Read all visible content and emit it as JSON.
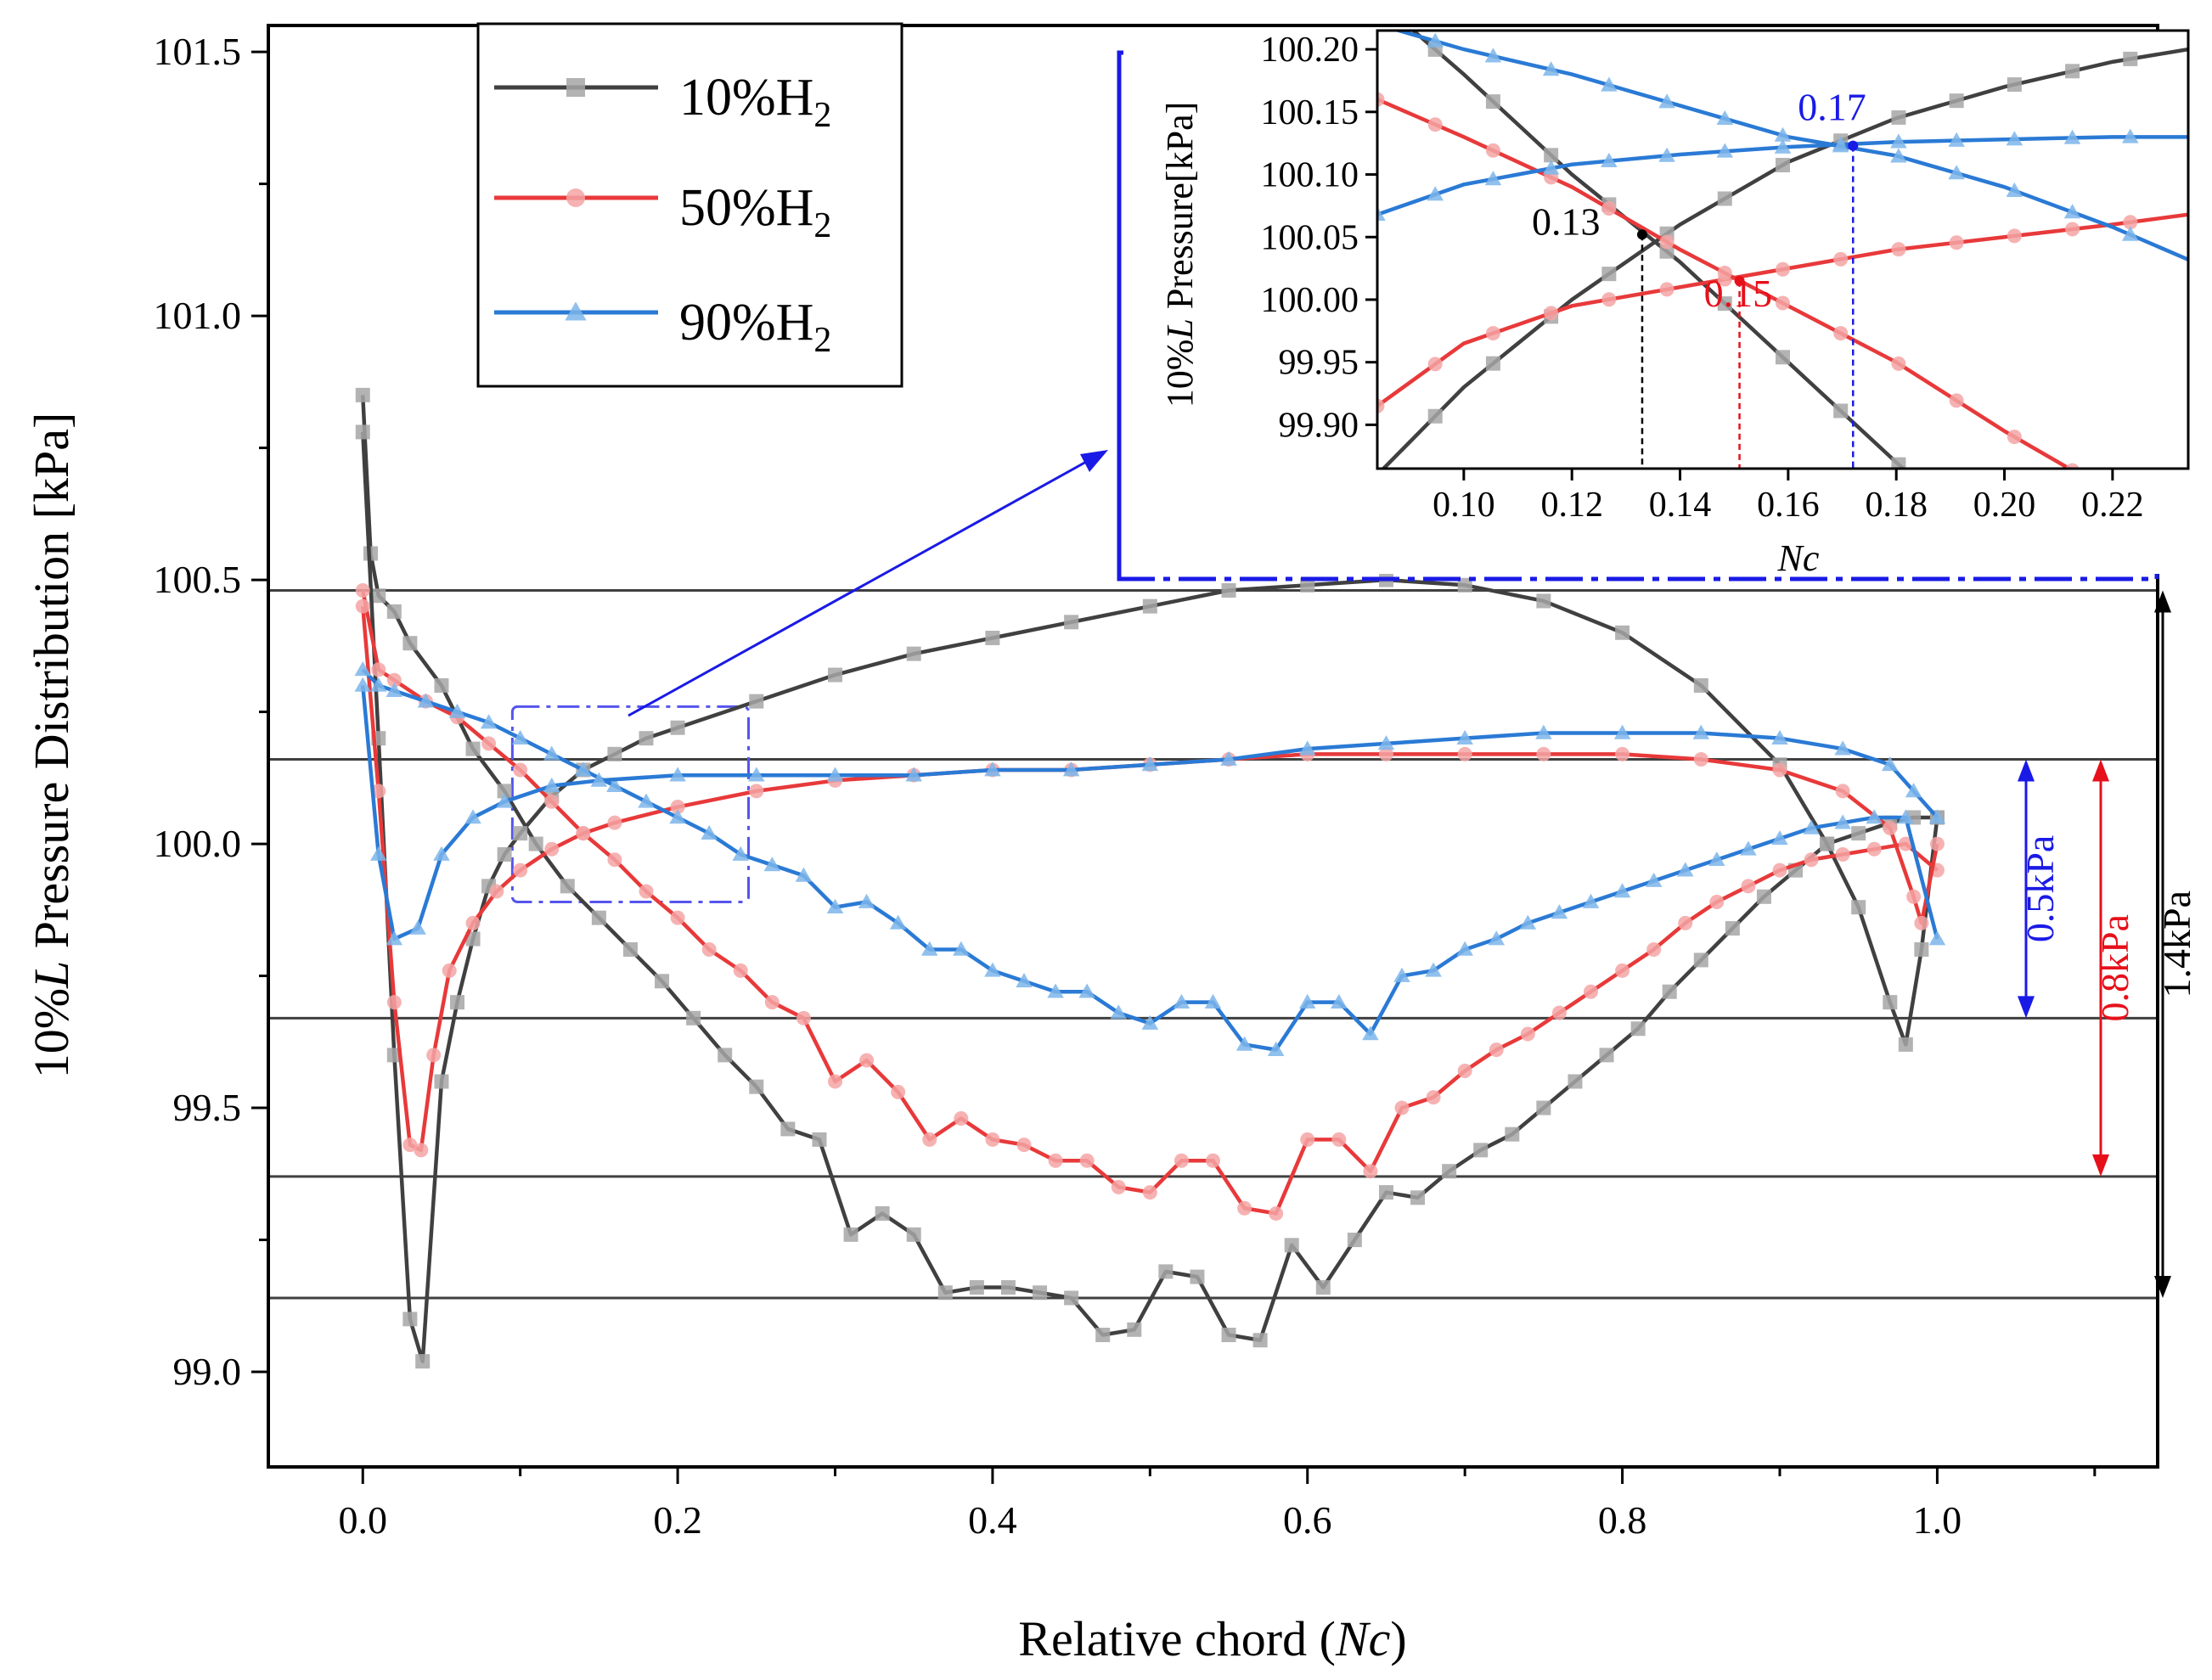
{
  "chart_data": {
    "type": "line",
    "xlabel_prefix": "Relative chord (",
    "xlabel_var": "Nc",
    "xlabel_suffix": ")",
    "ylabel_prefix": "10%",
    "ylabel_var": "L",
    "ylabel_suffix": " Pressure Distribution [kPa]",
    "xlim": [
      -0.06,
      1.14
    ],
    "ylim": [
      98.82,
      101.55
    ],
    "xticks": [
      "0.0",
      "0.2",
      "0.4",
      "0.6",
      "0.8",
      "1.0"
    ],
    "xtick_values": [
      0.0,
      0.2,
      0.4,
      0.6,
      0.8,
      1.0
    ],
    "yticks": [
      "99.0",
      "99.5",
      "100.0",
      "100.5",
      "101.0",
      "101.5"
    ],
    "ytick_values": [
      99.0,
      99.5,
      100.0,
      100.5,
      101.0,
      101.5
    ],
    "series": [
      {
        "name_prefix": "10%H",
        "name_sub": "2",
        "color": "#404040",
        "marker_color": "#a6a6a6",
        "marker": "square",
        "upper_x": [
          0.0,
          0.005,
          0.01,
          0.02,
          0.03,
          0.05,
          0.07,
          0.09,
          0.11,
          0.13,
          0.15,
          0.17,
          0.19,
          0.21,
          0.23,
          0.25,
          0.27,
          0.29,
          0.31,
          0.33,
          0.35,
          0.37,
          0.39,
          0.41,
          0.43,
          0.45,
          0.47,
          0.49,
          0.51,
          0.53,
          0.55,
          0.57,
          0.59,
          0.61,
          0.63,
          0.65,
          0.67,
          0.69,
          0.71,
          0.73,
          0.75,
          0.77,
          0.79,
          0.81,
          0.83,
          0.85,
          0.87,
          0.89,
          0.91,
          0.93,
          0.95,
          0.97,
          0.985,
          1.0
        ],
        "upper_y": [
          100.85,
          100.55,
          100.47,
          100.44,
          100.38,
          100.3,
          100.18,
          100.1,
          100.0,
          99.92,
          99.86,
          99.8,
          99.74,
          99.67,
          99.6,
          99.54,
          99.46,
          99.44,
          99.26,
          99.3,
          99.26,
          99.15,
          99.16,
          99.16,
          99.15,
          99.14,
          99.07,
          99.08,
          99.19,
          99.18,
          99.07,
          99.06,
          99.24,
          99.16,
          99.25,
          99.34,
          99.33,
          99.38,
          99.42,
          99.45,
          99.5,
          99.55,
          99.6,
          99.65,
          99.72,
          99.78,
          99.84,
          99.9,
          99.95,
          100.0,
          100.02,
          100.04,
          100.05,
          100.05
        ],
        "lower_x": [
          0.0,
          0.01,
          0.02,
          0.03,
          0.038,
          0.05,
          0.06,
          0.07,
          0.08,
          0.09,
          0.1,
          0.12,
          0.14,
          0.16,
          0.18,
          0.2,
          0.25,
          0.3,
          0.35,
          0.4,
          0.45,
          0.5,
          0.55,
          0.6,
          0.65,
          0.7,
          0.75,
          0.8,
          0.85,
          0.9,
          0.93,
          0.95,
          0.97,
          0.98,
          0.99,
          1.0
        ],
        "lower_y": [
          100.78,
          100.2,
          99.6,
          99.1,
          99.02,
          99.55,
          99.7,
          99.82,
          99.92,
          99.98,
          100.02,
          100.09,
          100.14,
          100.17,
          100.2,
          100.22,
          100.27,
          100.32,
          100.36,
          100.39,
          100.42,
          100.45,
          100.48,
          100.49,
          100.5,
          100.49,
          100.46,
          100.4,
          100.3,
          100.15,
          100.0,
          99.88,
          99.7,
          99.62,
          99.8,
          100.05
        ]
      },
      {
        "name_prefix": "50%H",
        "name_sub": "2",
        "color": "#e8393a",
        "marker_color": "#f4a4a4",
        "marker": "circle",
        "upper_x": [
          0.0,
          0.01,
          0.02,
          0.04,
          0.06,
          0.08,
          0.1,
          0.12,
          0.14,
          0.16,
          0.18,
          0.2,
          0.22,
          0.24,
          0.26,
          0.28,
          0.3,
          0.32,
          0.34,
          0.36,
          0.38,
          0.4,
          0.42,
          0.44,
          0.46,
          0.48,
          0.5,
          0.52,
          0.54,
          0.56,
          0.58,
          0.6,
          0.62,
          0.64,
          0.66,
          0.68,
          0.7,
          0.72,
          0.74,
          0.76,
          0.78,
          0.8,
          0.82,
          0.84,
          0.86,
          0.88,
          0.9,
          0.92,
          0.94,
          0.96,
          0.98,
          1.0
        ],
        "upper_y": [
          100.48,
          100.33,
          100.31,
          100.27,
          100.24,
          100.19,
          100.14,
          100.08,
          100.02,
          99.97,
          99.91,
          99.86,
          99.8,
          99.76,
          99.7,
          99.67,
          99.55,
          99.59,
          99.53,
          99.44,
          99.48,
          99.44,
          99.43,
          99.4,
          99.4,
          99.35,
          99.34,
          99.4,
          99.4,
          99.31,
          99.3,
          99.44,
          99.44,
          99.38,
          99.5,
          99.52,
          99.57,
          99.61,
          99.64,
          99.68,
          99.72,
          99.76,
          99.8,
          99.85,
          99.89,
          99.92,
          99.95,
          99.97,
          99.98,
          99.99,
          100.0,
          99.95
        ],
        "lower_x": [
          0.0,
          0.01,
          0.02,
          0.03,
          0.037,
          0.045,
          0.055,
          0.07,
          0.085,
          0.1,
          0.12,
          0.14,
          0.16,
          0.2,
          0.25,
          0.3,
          0.35,
          0.4,
          0.45,
          0.5,
          0.55,
          0.6,
          0.65,
          0.7,
          0.75,
          0.8,
          0.85,
          0.9,
          0.94,
          0.97,
          0.985,
          0.99,
          1.0
        ],
        "lower_y": [
          100.45,
          100.1,
          99.7,
          99.43,
          99.42,
          99.6,
          99.76,
          99.85,
          99.91,
          99.95,
          99.99,
          100.02,
          100.04,
          100.07,
          100.1,
          100.12,
          100.13,
          100.14,
          100.14,
          100.15,
          100.16,
          100.17,
          100.17,
          100.17,
          100.17,
          100.17,
          100.16,
          100.14,
          100.1,
          100.03,
          99.9,
          99.85,
          100.0
        ]
      },
      {
        "name_prefix": "90%H",
        "name_sub": "2",
        "color": "#2a7ad5",
        "marker_color": "#7db5ea",
        "marker": "triangle",
        "upper_x": [
          0.0,
          0.01,
          0.02,
          0.04,
          0.06,
          0.08,
          0.1,
          0.12,
          0.14,
          0.16,
          0.18,
          0.2,
          0.22,
          0.24,
          0.26,
          0.28,
          0.3,
          0.32,
          0.34,
          0.36,
          0.38,
          0.4,
          0.42,
          0.44,
          0.46,
          0.48,
          0.5,
          0.52,
          0.54,
          0.56,
          0.58,
          0.6,
          0.62,
          0.64,
          0.66,
          0.68,
          0.7,
          0.72,
          0.74,
          0.76,
          0.78,
          0.8,
          0.82,
          0.84,
          0.86,
          0.88,
          0.9,
          0.92,
          0.94,
          0.96,
          0.98,
          1.0
        ],
        "upper_y": [
          100.33,
          100.3,
          100.29,
          100.27,
          100.25,
          100.23,
          100.2,
          100.17,
          100.14,
          100.11,
          100.08,
          100.05,
          100.02,
          99.98,
          99.96,
          99.94,
          99.88,
          99.89,
          99.85,
          99.8,
          99.8,
          99.76,
          99.74,
          99.72,
          99.72,
          99.68,
          99.66,
          99.7,
          99.7,
          99.62,
          99.61,
          99.7,
          99.7,
          99.64,
          99.75,
          99.76,
          99.8,
          99.82,
          99.85,
          99.87,
          99.89,
          99.91,
          99.93,
          99.95,
          99.97,
          99.99,
          100.01,
          100.03,
          100.04,
          100.05,
          100.05,
          99.82
        ],
        "lower_x": [
          0.0,
          0.01,
          0.02,
          0.035,
          0.05,
          0.07,
          0.09,
          0.12,
          0.15,
          0.2,
          0.25,
          0.3,
          0.35,
          0.4,
          0.45,
          0.5,
          0.55,
          0.6,
          0.65,
          0.7,
          0.75,
          0.8,
          0.85,
          0.9,
          0.94,
          0.97,
          0.985,
          1.0
        ],
        "lower_y": [
          100.3,
          99.98,
          99.82,
          99.84,
          99.98,
          100.05,
          100.08,
          100.11,
          100.12,
          100.13,
          100.13,
          100.13,
          100.13,
          100.14,
          100.14,
          100.15,
          100.16,
          100.18,
          100.19,
          100.2,
          100.21,
          100.21,
          100.21,
          100.2,
          100.18,
          100.15,
          100.1,
          100.05
        ]
      }
    ],
    "hlines": [
      100.48,
      100.16,
      99.67,
      99.37,
      99.14
    ],
    "ranges": [
      {
        "label": "0.5kPa",
        "from": 100.16,
        "to": 99.67,
        "color": "#1a1ae6"
      },
      {
        "label": "0.8kPa",
        "from": 100.16,
        "to": 99.37,
        "color": "#e6101a"
      },
      {
        "label": "1.4kPa",
        "from": 100.48,
        "to": 99.14,
        "color": "#000000"
      }
    ],
    "zoom_box": {
      "x": [
        0.095,
        0.245
      ],
      "y": [
        99.89,
        100.26
      ]
    },
    "inset": {
      "xlabel": "Nc",
      "ylabel_prefix": "10%",
      "ylabel_var": "L",
      "ylabel_suffix": " Pressure[kPa]",
      "xlim": [
        0.084,
        0.234
      ],
      "ylim": [
        99.865,
        100.215
      ],
      "xticks": [
        "0.10",
        "0.12",
        "0.14",
        "0.16",
        "0.18",
        "0.20",
        "0.22"
      ],
      "xtick_values": [
        0.1,
        0.12,
        0.14,
        0.16,
        0.18,
        0.2,
        0.22
      ],
      "yticks": [
        "99.90",
        "99.95",
        "100.00",
        "100.05",
        "100.10",
        "100.15",
        "100.20"
      ],
      "ytick_values": [
        99.9,
        99.95,
        100.0,
        100.05,
        100.1,
        100.15,
        100.2
      ],
      "intersections": [
        {
          "label": "0.13",
          "x": 0.133,
          "y": 100.052,
          "color": "#000000"
        },
        {
          "label": "0.15",
          "x": 0.151,
          "y": 100.015,
          "color": "#e6101a"
        },
        {
          "label": "0.17",
          "x": 0.172,
          "y": 100.123,
          "color": "#1a1ae6"
        }
      ],
      "lines": [
        {
          "series": 0,
          "x": [
            0.084,
            0.1,
            0.12,
            0.14,
            0.16,
            0.18,
            0.2,
            0.22,
            0.234
          ],
          "y": [
            99.86,
            99.93,
            100.0,
            100.06,
            100.11,
            100.145,
            100.17,
            100.19,
            100.2
          ]
        },
        {
          "series": 0,
          "x": [
            0.084,
            0.1,
            0.12,
            0.14,
            0.16,
            0.18,
            0.19
          ],
          "y": [
            100.24,
            100.18,
            100.1,
            100.03,
            99.95,
            99.87,
            99.83
          ]
        },
        {
          "series": 1,
          "x": [
            0.084,
            0.1,
            0.12,
            0.14,
            0.16,
            0.18,
            0.2,
            0.22,
            0.234
          ],
          "y": [
            99.915,
            99.965,
            99.995,
            100.01,
            100.025,
            100.04,
            100.05,
            100.06,
            100.068
          ]
        },
        {
          "series": 1,
          "x": [
            0.084,
            0.1,
            0.12,
            0.14,
            0.16,
            0.18,
            0.2,
            0.22,
            0.234
          ],
          "y": [
            100.16,
            100.13,
            100.09,
            100.04,
            99.995,
            99.95,
            99.895,
            99.845,
            99.81
          ]
        },
        {
          "series": 2,
          "x": [
            0.084,
            0.1,
            0.12,
            0.14,
            0.16,
            0.18,
            0.2,
            0.22,
            0.234
          ],
          "y": [
            100.068,
            100.092,
            100.108,
            100.116,
            100.122,
            100.126,
            100.128,
            100.13,
            100.13
          ]
        },
        {
          "series": 2,
          "x": [
            0.084,
            0.1,
            0.12,
            0.14,
            0.16,
            0.18,
            0.2,
            0.22,
            0.234
          ],
          "y": [
            100.22,
            100.2,
            100.18,
            100.155,
            100.13,
            100.115,
            100.09,
            100.058,
            100.032
          ]
        }
      ]
    }
  }
}
